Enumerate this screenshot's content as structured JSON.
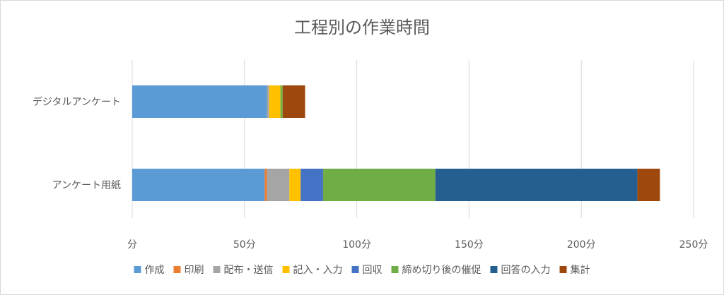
{
  "chart_data": {
    "type": "bar",
    "orientation": "horizontal",
    "stacked": true,
    "title": "工程別の作業時間",
    "xlabel": "",
    "ylabel": "",
    "xlim": [
      0,
      250
    ],
    "x_ticks": [
      "分",
      "50分",
      "100分",
      "150分",
      "200分",
      "250分"
    ],
    "x_tick_values": [
      0,
      50,
      100,
      150,
      200,
      250
    ],
    "grid": true,
    "legend": "bottom",
    "categories": [
      "デジタルアンケート",
      "アンケート用紙"
    ],
    "series": [
      {
        "name": "作成",
        "color": "#5b9bd5",
        "values": [
          60,
          59
        ]
      },
      {
        "name": "印刷",
        "color": "#ed7d31",
        "values": [
          0,
          1
        ]
      },
      {
        "name": "配布・送信",
        "color": "#a5a5a5",
        "values": [
          1,
          10
        ]
      },
      {
        "name": "記入・入力",
        "color": "#ffc000",
        "values": [
          5,
          5
        ]
      },
      {
        "name": "回収",
        "color": "#4472c4",
        "values": [
          0,
          10
        ]
      },
      {
        "name": "締め切り後の催促",
        "color": "#70ad47",
        "values": [
          1,
          50
        ]
      },
      {
        "name": "回答の入力",
        "color": "#255e91",
        "values": [
          0,
          90
        ]
      },
      {
        "name": "集計",
        "color": "#9e480e",
        "values": [
          10,
          10
        ]
      }
    ]
  }
}
